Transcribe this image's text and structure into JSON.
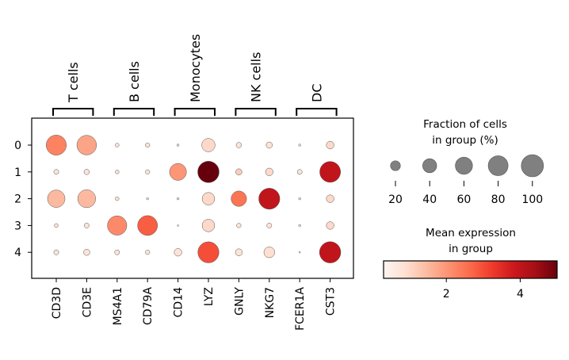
{
  "chart_data": {
    "type": "scatter",
    "subtype": "dotplot",
    "genes": [
      "CD3D",
      "CD3E",
      "MS4A1",
      "CD79A",
      "CD14",
      "LYZ",
      "GNLY",
      "NKG7",
      "FCER1A",
      "CST3"
    ],
    "clusters": [
      "0",
      "1",
      "2",
      "3",
      "4"
    ],
    "gene_groups": [
      {
        "label": "T cells",
        "genes": [
          "CD3D",
          "CD3E"
        ]
      },
      {
        "label": "B cells",
        "genes": [
          "MS4A1",
          "CD79A"
        ]
      },
      {
        "label": "Monocytes",
        "genes": [
          "CD14",
          "LYZ"
        ]
      },
      {
        "label": "NK cells",
        "genes": [
          "GNLY",
          "NKG7"
        ]
      },
      {
        "label": "DC",
        "genes": [
          "FCER1A",
          "CST3"
        ]
      }
    ],
    "fraction": [
      [
        82,
        78,
        3,
        4,
        1,
        36,
        6,
        8,
        1,
        12
      ],
      [
        5,
        6,
        3,
        4,
        58,
        93,
        8,
        12,
        5,
        88
      ],
      [
        62,
        65,
        3,
        1,
        1,
        32,
        48,
        90,
        1,
        12
      ],
      [
        3,
        5,
        76,
        80,
        0.5,
        32,
        4,
        5,
        1,
        12
      ],
      [
        5,
        8,
        5,
        4,
        12,
        90,
        10,
        24,
        0.5,
        92
      ]
    ],
    "expression": [
      [
        2.3,
        1.8,
        0.8,
        0.8,
        0.8,
        1.0,
        0.8,
        0.8,
        0.8,
        1.0
      ],
      [
        0.8,
        0.8,
        0.8,
        0.8,
        2.0,
        5.0,
        1.2,
        1.0,
        0.8,
        4.0
      ],
      [
        1.5,
        1.5,
        0.8,
        0.8,
        0.8,
        1.0,
        2.5,
        4.0,
        0.8,
        1.0
      ],
      [
        0.8,
        0.8,
        2.2,
        2.8,
        0.8,
        1.0,
        0.8,
        0.8,
        0.8,
        1.0
      ],
      [
        0.8,
        0.8,
        0.8,
        0.8,
        0.8,
        3.0,
        0.8,
        0.9,
        0.8,
        4.0
      ]
    ],
    "size_legend": {
      "title_lines": [
        "Fraction of cells",
        "in group (%)"
      ],
      "values": [
        20,
        40,
        60,
        80,
        100
      ],
      "labels": [
        "20",
        "40",
        "60",
        "80",
        "100"
      ]
    },
    "color_legend": {
      "title_lines": [
        "Mean expression",
        "in group"
      ],
      "range": [
        0.3,
        5.0
      ],
      "ticks": [
        2,
        4
      ],
      "tick_labels": [
        "2",
        "4"
      ],
      "colormap": "Reds"
    },
    "colors": {
      "reds": [
        "#fff5f0",
        "#fee0d2",
        "#fcbba1",
        "#fc9272",
        "#fb6a4a",
        "#ef3b2c",
        "#cb181d",
        "#a50f15",
        "#67000d"
      ],
      "size_legend_fill": "#808080",
      "dot_edge": "#555555"
    }
  }
}
